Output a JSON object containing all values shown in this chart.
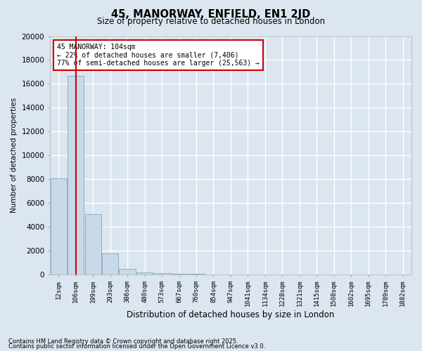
{
  "title1": "45, MANORWAY, ENFIELD, EN1 2JD",
  "title2": "Size of property relative to detached houses in London",
  "xlabel": "Distribution of detached houses by size in London",
  "ylabel": "Number of detached properties",
  "categories": [
    "12sqm",
    "106sqm",
    "199sqm",
    "293sqm",
    "386sqm",
    "480sqm",
    "573sqm",
    "667sqm",
    "760sqm",
    "854sqm",
    "947sqm",
    "1041sqm",
    "1134sqm",
    "1228sqm",
    "1321sqm",
    "1415sqm",
    "1508sqm",
    "1602sqm",
    "1695sqm",
    "1789sqm",
    "1882sqm"
  ],
  "values": [
    8100,
    16700,
    5100,
    1750,
    500,
    200,
    130,
    80,
    50,
    30,
    20,
    0,
    0,
    0,
    0,
    0,
    0,
    0,
    0,
    0,
    0
  ],
  "bar_color": "#c9d9e8",
  "bar_edge_color": "#7aaac8",
  "vline_x": 1,
  "vline_color": "#cc0000",
  "annotation_text": "45 MANORWAY: 104sqm\n← 22% of detached houses are smaller (7,406)\n77% of semi-detached houses are larger (25,563) →",
  "annotation_box_color": "#cc0000",
  "ylim": [
    0,
    20000
  ],
  "yticks": [
    0,
    2000,
    4000,
    6000,
    8000,
    10000,
    12000,
    14000,
    16000,
    18000,
    20000
  ],
  "footer1": "Contains HM Land Registry data © Crown copyright and database right 2025.",
  "footer2": "Contains public sector information licensed under the Open Government Licence v3.0.",
  "background_color": "#dce6f0",
  "grid_color": "#ffffff"
}
